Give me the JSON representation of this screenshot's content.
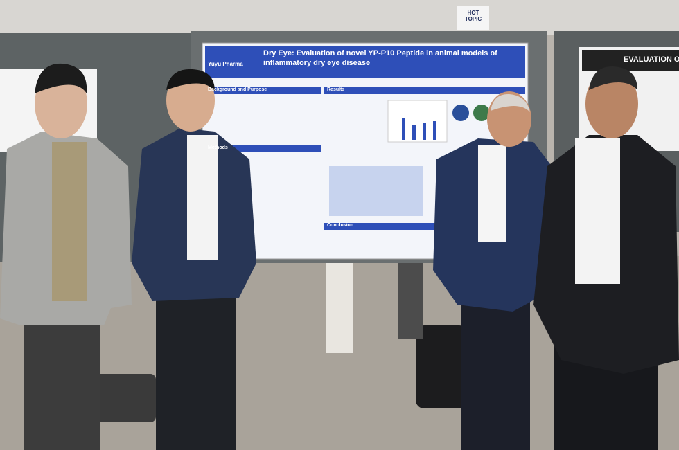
{
  "hot_topic_sign": "HOT TOPIC",
  "poster": {
    "company": "Yuyu Pharma",
    "title": "Dry Eye: Evaluation of novel YP-P10 Peptide in animal models of inflammatory dry eye disease",
    "sections": [
      "Background and Purpose",
      "Methods",
      "Results",
      "Conclusion:"
    ]
  },
  "right_poster": {
    "title": "EVALUATION OF"
  }
}
